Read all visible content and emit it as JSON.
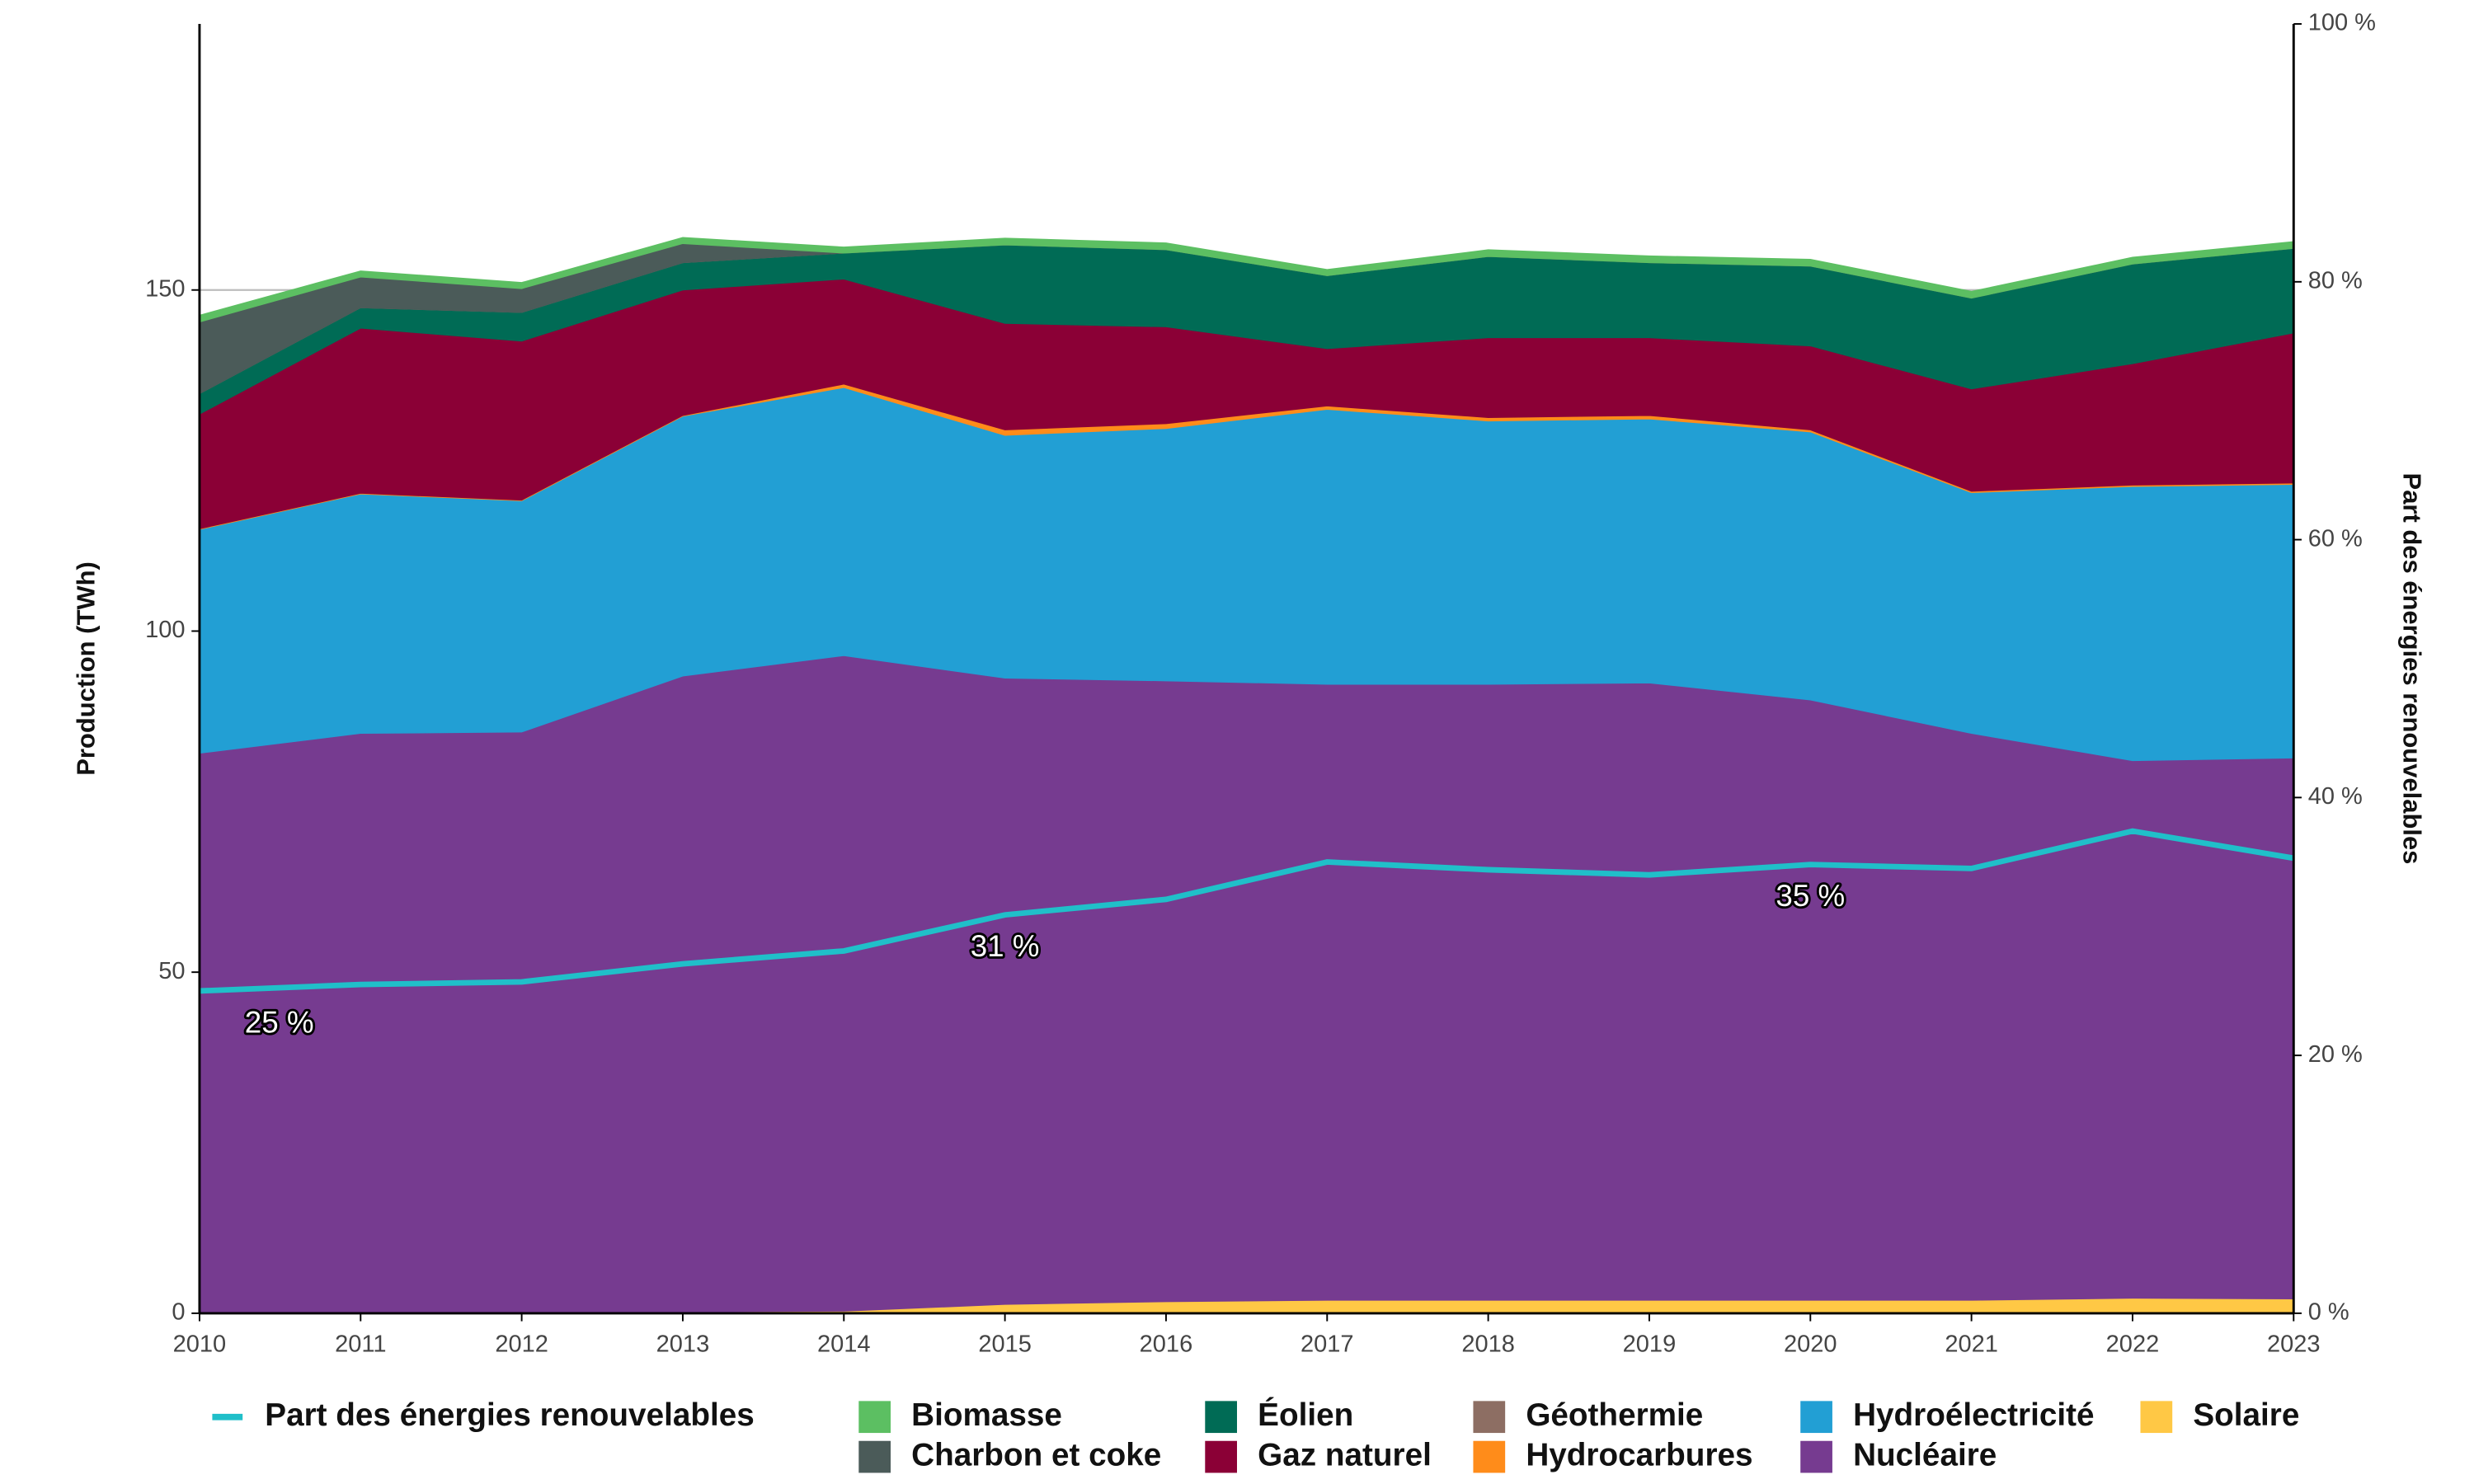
{
  "chart_data": {
    "type": "area",
    "y_label": "Production (TWh)",
    "y2_label": "Part des énergies renouvelables",
    "x": [
      2010,
      2011,
      2012,
      2013,
      2014,
      2015,
      2016,
      2017,
      2018,
      2019,
      2020,
      2021,
      2022,
      2023
    ],
    "xlim": [
      2010,
      2023
    ],
    "xticks": [
      2010,
      2011,
      2012,
      2013,
      2014,
      2015,
      2016,
      2017,
      2018,
      2019,
      2020,
      2021,
      2022,
      2023
    ],
    "ylim": [
      0,
      189
    ],
    "yticks": [
      0,
      50,
      100,
      150
    ],
    "y2lim": [
      0,
      100
    ],
    "y2ticks": [
      {
        "value": 0,
        "label": "0 %"
      },
      {
        "value": 20,
        "label": "20 %"
      },
      {
        "value": 40,
        "label": "40 %"
      },
      {
        "value": 60,
        "label": "60 %"
      },
      {
        "value": 80,
        "label": "80 %"
      },
      {
        "value": 100,
        "label": "100 %"
      }
    ],
    "grid": true,
    "legend": "bottom",
    "series": [
      {
        "name": "Part des énergies renouvelables",
        "type": "line",
        "axis": "y2",
        "color": "#20bfc9",
        "values": [
          25.0,
          25.5,
          25.7,
          27.1,
          28.1,
          30.9,
          32.1,
          35.0,
          34.4,
          34.0,
          34.8,
          34.5,
          37.4,
          35.3
        ],
        "value_labels": [
          "25 %",
          null,
          null,
          null,
          null,
          "31 %",
          null,
          null,
          null,
          null,
          "35 %",
          null,
          null,
          null
        ]
      },
      {
        "name": "Solaire",
        "color": "#ffc845",
        "values": [
          0.1,
          0.1,
          0.1,
          0.2,
          0.3,
          1.3,
          1.7,
          1.9,
          1.9,
          1.9,
          1.9,
          1.9,
          2.2,
          2.1
        ]
      },
      {
        "name": "Nucléaire",
        "color": "#763b90",
        "values": [
          82.0,
          84.9,
          85.1,
          93.2,
          96.1,
          91.8,
          91.0,
          90.3,
          90.3,
          90.5,
          88.0,
          83.1,
          78.8,
          79.3
        ]
      },
      {
        "name": "Hydroélectricité",
        "color": "#229fd4",
        "values": [
          32.8,
          35.1,
          33.9,
          38.1,
          39.3,
          35.6,
          37.0,
          40.3,
          38.6,
          38.7,
          39.3,
          35.3,
          40.2,
          40.1
        ]
      },
      {
        "name": "Hydrocarbures",
        "color": "#ff8c1a",
        "values": [
          0.1,
          0.1,
          0.1,
          0.1,
          0.5,
          0.8,
          0.7,
          0.5,
          0.5,
          0.5,
          0.3,
          0.2,
          0.2,
          0.2
        ]
      },
      {
        "name": "Gaz naturel",
        "color": "#8b0036",
        "values": [
          16.8,
          24.2,
          23.3,
          18.4,
          15.4,
          15.6,
          14.2,
          8.4,
          11.7,
          11.4,
          12.3,
          15.0,
          17.8,
          22.0
        ]
      },
      {
        "name": "Éolien",
        "color": "#006b55",
        "values": [
          3.0,
          3.0,
          4.2,
          4.0,
          3.8,
          11.5,
          11.3,
          10.7,
          11.9,
          11.0,
          11.7,
          13.3,
          14.6,
          12.4
        ]
      },
      {
        "name": "Géothermie",
        "color": "#8d6e63",
        "values": [
          0,
          0,
          0,
          0,
          0,
          0,
          0,
          0,
          0,
          0,
          0,
          0,
          0,
          0
        ]
      },
      {
        "name": "Charbon et coke",
        "color": "#4b5b59",
        "values": [
          10.5,
          4.5,
          3.5,
          2.8,
          0,
          0,
          0,
          0,
          0,
          0,
          0,
          0,
          0,
          0
        ]
      },
      {
        "name": "Biomasse",
        "color": "#5cbf62",
        "values": [
          1.0,
          0.9,
          0.9,
          0.9,
          0.9,
          1.0,
          1.0,
          0.9,
          1.0,
          1.0,
          1.0,
          1.0,
          1.0,
          1.0
        ]
      }
    ]
  }
}
